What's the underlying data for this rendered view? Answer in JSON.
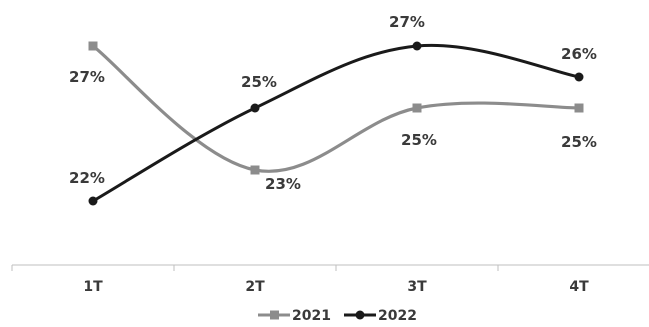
{
  "chart_data": {
    "type": "line",
    "categories": [
      "1T",
      "2T",
      "3T",
      "4T"
    ],
    "series": [
      {
        "name": "2021",
        "values": [
          27,
          23,
          25,
          25
        ],
        "labels": [
          "27%",
          "23%",
          "25%",
          "25%"
        ],
        "color": "#8c8c8c",
        "marker": "square"
      },
      {
        "name": "2022",
        "values": [
          22,
          25,
          27,
          26
        ],
        "labels": [
          "22%",
          "25%",
          "27%",
          "26%"
        ],
        "color": "#1a1a1a",
        "marker": "circle"
      }
    ],
    "legend": "bottom",
    "grid": false,
    "title": "",
    "xlabel": "",
    "ylabel": ""
  }
}
